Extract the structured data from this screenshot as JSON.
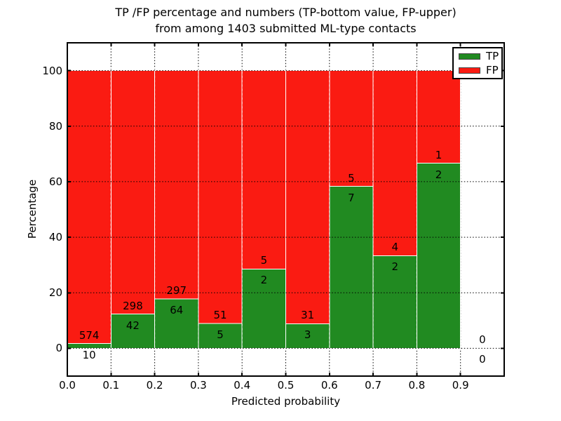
{
  "title": {
    "line1": "TP /FP percentage and numbers (TP-bottom value, FP-upper)",
    "line2": "from among 1403 submitted ML-type contacts"
  },
  "axes": {
    "xlabel": "Predicted probability",
    "ylabel": "Percentage",
    "yticks": {
      "values": [
        0,
        20,
        40,
        60,
        80,
        100
      ],
      "labels": [
        "0",
        "20",
        "40",
        "60",
        "80",
        "100"
      ]
    },
    "xticks": {
      "values": [
        0,
        0.1,
        0.2,
        0.3,
        0.4,
        0.5,
        0.6,
        0.7,
        0.8,
        0.9
      ],
      "labels": [
        "0.0",
        "0.1",
        "0.2",
        "0.3",
        "0.4",
        "0.5",
        "0.6",
        "0.7",
        "0.8",
        "0.9"
      ]
    },
    "grid": true
  },
  "legend": {
    "position": "upper-right",
    "items": [
      {
        "label": "TP",
        "color": "#218a21"
      },
      {
        "label": "FP",
        "color": "#fa1b12"
      }
    ]
  },
  "chart_data": {
    "type": "bar",
    "stacked": true,
    "normalized": "each bin stacked to 100%",
    "title": "TP /FP percentage and numbers (TP-bottom value, FP-upper) from among 1403 submitted ML-type contacts",
    "xlabel": "Predicted probability",
    "ylabel": "Percentage",
    "xlim": [
      0,
      1.0
    ],
    "ylim": [
      -10,
      110
    ],
    "bin_width": 0.1,
    "categories": [
      0.0,
      0.1,
      0.2,
      0.3,
      0.4,
      0.5,
      0.6,
      0.7,
      0.8,
      0.9
    ],
    "series": [
      {
        "name": "TP",
        "color": "#218a21",
        "counts": [
          10,
          42,
          64,
          5,
          2,
          3,
          7,
          2,
          2,
          0
        ]
      },
      {
        "name": "FP",
        "color": "#fa1b12",
        "counts": [
          574,
          298,
          297,
          51,
          5,
          31,
          5,
          4,
          1,
          0
        ]
      }
    ],
    "tp_percent_per_bin": [
      1.7,
      12.4,
      17.7,
      8.9,
      28.6,
      8.8,
      58.3,
      33.3,
      66.7,
      null
    ],
    "total_contacts": 1403
  }
}
